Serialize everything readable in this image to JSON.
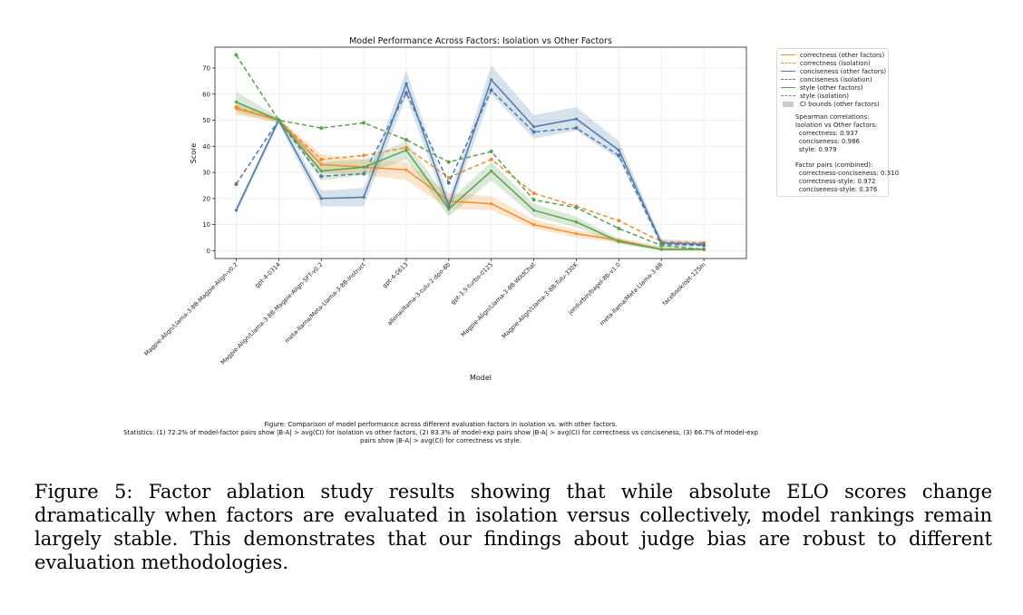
{
  "chart_data": {
    "type": "line",
    "title": "Model Performance Across Factors: Isolation vs Other Factors",
    "xlabel": "Model",
    "ylabel": "Score",
    "ylim": [
      -3,
      78
    ],
    "yticks": [
      0,
      10,
      20,
      30,
      40,
      50,
      60,
      70
    ],
    "grid": true,
    "legend_position": "outside-right",
    "categories": [
      "Magpie-Align/Llama-3-8B-Magpie-Align-v0.2",
      "gpt-4-0314",
      "Magpie-Align/Llama-3-8B-Magpie-Align-SFT-v0.2",
      "meta-llama/Meta-Llama-3-8B-Instruct",
      "gpt-4-0613",
      "allenai/llama-3-tulu-2-dpo-8b",
      "gpt-3.5-turbo-0125",
      "Magpie-Align/Llama-3-8B-WildChat",
      "Magpie-Align/Llama-3-8B-Tulu-330K",
      "jondurbin/bagel-8b-v1.0",
      "meta-llama/Meta-Llama-3-8B",
      "facebook/opt-125m"
    ],
    "series": [
      {
        "name": "correctness (other factors)",
        "color": "#f28e2b",
        "dash": false,
        "marker": false,
        "values": [
          54.5,
          50,
          33,
          32,
          31,
          19,
          18,
          10,
          6.5,
          4,
          0.5,
          0.5
        ],
        "ci_lower": [
          52,
          49,
          30,
          29,
          27,
          16,
          15.5,
          8.5,
          5,
          3,
          0,
          0
        ],
        "ci_upper": [
          57,
          51,
          37,
          35,
          34,
          22,
          21,
          12,
          8,
          5,
          1.5,
          1
        ]
      },
      {
        "name": "correctness (isolation)",
        "color": "#f28e2b",
        "dash": true,
        "marker": true,
        "values": [
          55,
          50,
          35,
          36.5,
          39.5,
          28,
          35,
          22,
          17,
          11.5,
          3.5,
          3
        ]
      },
      {
        "name": "conciseness (other factors)",
        "color": "#4e79a7",
        "dash": false,
        "marker": false,
        "values": [
          15.5,
          50,
          20,
          20.5,
          64,
          17,
          65.5,
          47.5,
          50.5,
          38.5,
          3,
          2.5
        ],
        "ci_lower": [
          14,
          48.5,
          17,
          17,
          59,
          14,
          60,
          43,
          46,
          35,
          1.5,
          1.5
        ],
        "ci_upper": [
          17,
          51.5,
          23,
          24,
          69,
          20,
          71,
          52,
          55,
          42,
          4.5,
          3.5
        ]
      },
      {
        "name": "conciseness (isolation)",
        "color": "#4e79a7",
        "dash": true,
        "marker": true,
        "values": [
          25.5,
          50,
          28.5,
          29.5,
          60.5,
          26,
          61.5,
          45.5,
          47,
          36.5,
          2.5,
          2
        ]
      },
      {
        "name": "style (other factors)",
        "color": "#59a14f",
        "dash": false,
        "marker": false,
        "values": [
          57,
          50,
          30.5,
          32,
          38.5,
          16,
          30.5,
          15.5,
          11,
          3.5,
          0.5,
          0.5
        ],
        "ci_lower": [
          53,
          49,
          27,
          29,
          35,
          13,
          27,
          13,
          9,
          2.5,
          0,
          0
        ],
        "ci_upper": [
          61,
          51,
          34,
          35,
          42,
          19,
          34,
          18,
          13,
          4.5,
          1.5,
          1
        ]
      },
      {
        "name": "style (isolation)",
        "color": "#59a14f",
        "dash": true,
        "marker": true,
        "values": [
          75,
          50,
          47,
          49,
          42.5,
          34,
          38,
          19.5,
          16.5,
          8.5,
          2,
          0.5
        ]
      }
    ],
    "ci_legend": "CI bounds (other factors)",
    "stats_title": "Spearman correlations:",
    "stats_subtitle": "Isolation vs Other factors:",
    "stats": [
      "correctness: 0.937",
      "conciseness: 0.986",
      "style: 0.979"
    ],
    "pairs_title": "Factor pairs (combined):",
    "pairs": [
      "correctness-conciseness: 0.310",
      "correctness-style: 0.972",
      "conciseness-style: 0.376"
    ]
  },
  "figure_note": {
    "line1": "Figure: Comparison of model performance across different evaluation factors in isolation vs. with other factors.",
    "line2": "Statistics: (1) 72.2% of model-factor pairs show |B-A| > avg(CI) for isolation vs other factors, (2) 83.3% of model-exp pairs show |B-A| > avg(CI) for correctness vs conciseness, (3) 66.7% of model-exp",
    "line3": "pairs show |B-A| > avg(CI) for correctness vs style."
  },
  "caption": "Figure 5: Factor ablation study results showing that while absolute ELO scores change dramatically when factors are evaluated in isolation versus collectively, model rankings remain largely stable. This demonstrates that our findings about judge bias are robust to different evaluation methodologies."
}
